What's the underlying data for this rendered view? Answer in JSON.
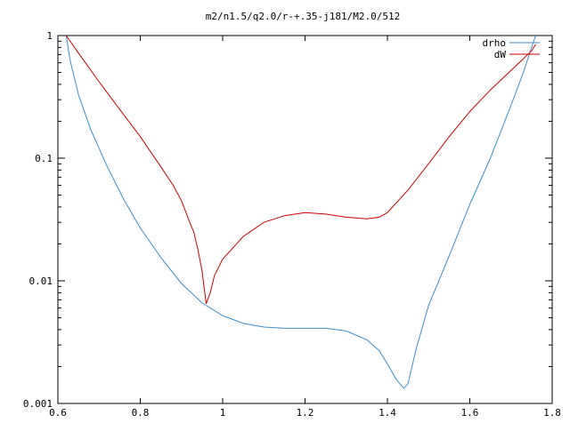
{
  "chart_data": {
    "type": "line",
    "title": "m2/n1.5/q2.0/r-+.35-j181/M2.0/512",
    "xlabel": "",
    "ylabel": "",
    "xlim": [
      0.6,
      1.8
    ],
    "ylim": [
      0.001,
      1
    ],
    "yscale": "log",
    "grid": false,
    "legend_position": "top-right",
    "x_ticks": [
      {
        "value": 0.6,
        "label": "0.6"
      },
      {
        "value": 0.8,
        "label": "0.8"
      },
      {
        "value": 1.0,
        "label": "1"
      },
      {
        "value": 1.2,
        "label": "1.2"
      },
      {
        "value": 1.4,
        "label": "1.4"
      },
      {
        "value": 1.6,
        "label": "1.6"
      },
      {
        "value": 1.8,
        "label": "1.8"
      }
    ],
    "y_ticks": [
      {
        "value": 1,
        "label": "1"
      },
      {
        "value": 0.1,
        "label": "0.1"
      },
      {
        "value": 0.01,
        "label": "0.01"
      },
      {
        "value": 0.001,
        "label": "0.001"
      }
    ],
    "series": [
      {
        "name": "drho",
        "color": "#3c8ccc",
        "x": [
          0.62,
          0.63,
          0.65,
          0.68,
          0.72,
          0.76,
          0.8,
          0.85,
          0.9,
          0.95,
          1.0,
          1.05,
          1.1,
          1.15,
          1.2,
          1.25,
          1.3,
          1.35,
          1.38,
          1.4,
          1.42,
          1.43,
          1.44,
          1.45,
          1.47,
          1.5,
          1.55,
          1.6,
          1.65,
          1.7,
          1.73,
          1.75,
          1.76
        ],
        "y": [
          1.0,
          0.62,
          0.33,
          0.17,
          0.085,
          0.046,
          0.027,
          0.0155,
          0.0095,
          0.0066,
          0.0052,
          0.0045,
          0.0042,
          0.0041,
          0.0041,
          0.0041,
          0.0039,
          0.0033,
          0.0027,
          0.0021,
          0.0016,
          0.00145,
          0.00133,
          0.00145,
          0.0028,
          0.0063,
          0.016,
          0.042,
          0.1,
          0.27,
          0.5,
          0.8,
          1.0
        ]
      },
      {
        "name": "dW",
        "color": "#cc0000",
        "x": [
          0.62,
          0.65,
          0.7,
          0.75,
          0.8,
          0.85,
          0.88,
          0.9,
          0.92,
          0.93,
          0.94,
          0.95,
          0.96,
          0.97,
          0.98,
          1.0,
          1.05,
          1.1,
          1.15,
          1.2,
          1.25,
          1.3,
          1.35,
          1.38,
          1.4,
          1.45,
          1.5,
          1.55,
          1.6,
          1.65,
          1.7,
          1.75,
          1.76
        ],
        "y": [
          1.0,
          0.72,
          0.42,
          0.25,
          0.15,
          0.085,
          0.06,
          0.045,
          0.03,
          0.025,
          0.018,
          0.012,
          0.0065,
          0.008,
          0.011,
          0.015,
          0.023,
          0.03,
          0.034,
          0.036,
          0.035,
          0.033,
          0.032,
          0.033,
          0.036,
          0.055,
          0.09,
          0.15,
          0.24,
          0.36,
          0.52,
          0.75,
          0.85
        ]
      }
    ]
  }
}
